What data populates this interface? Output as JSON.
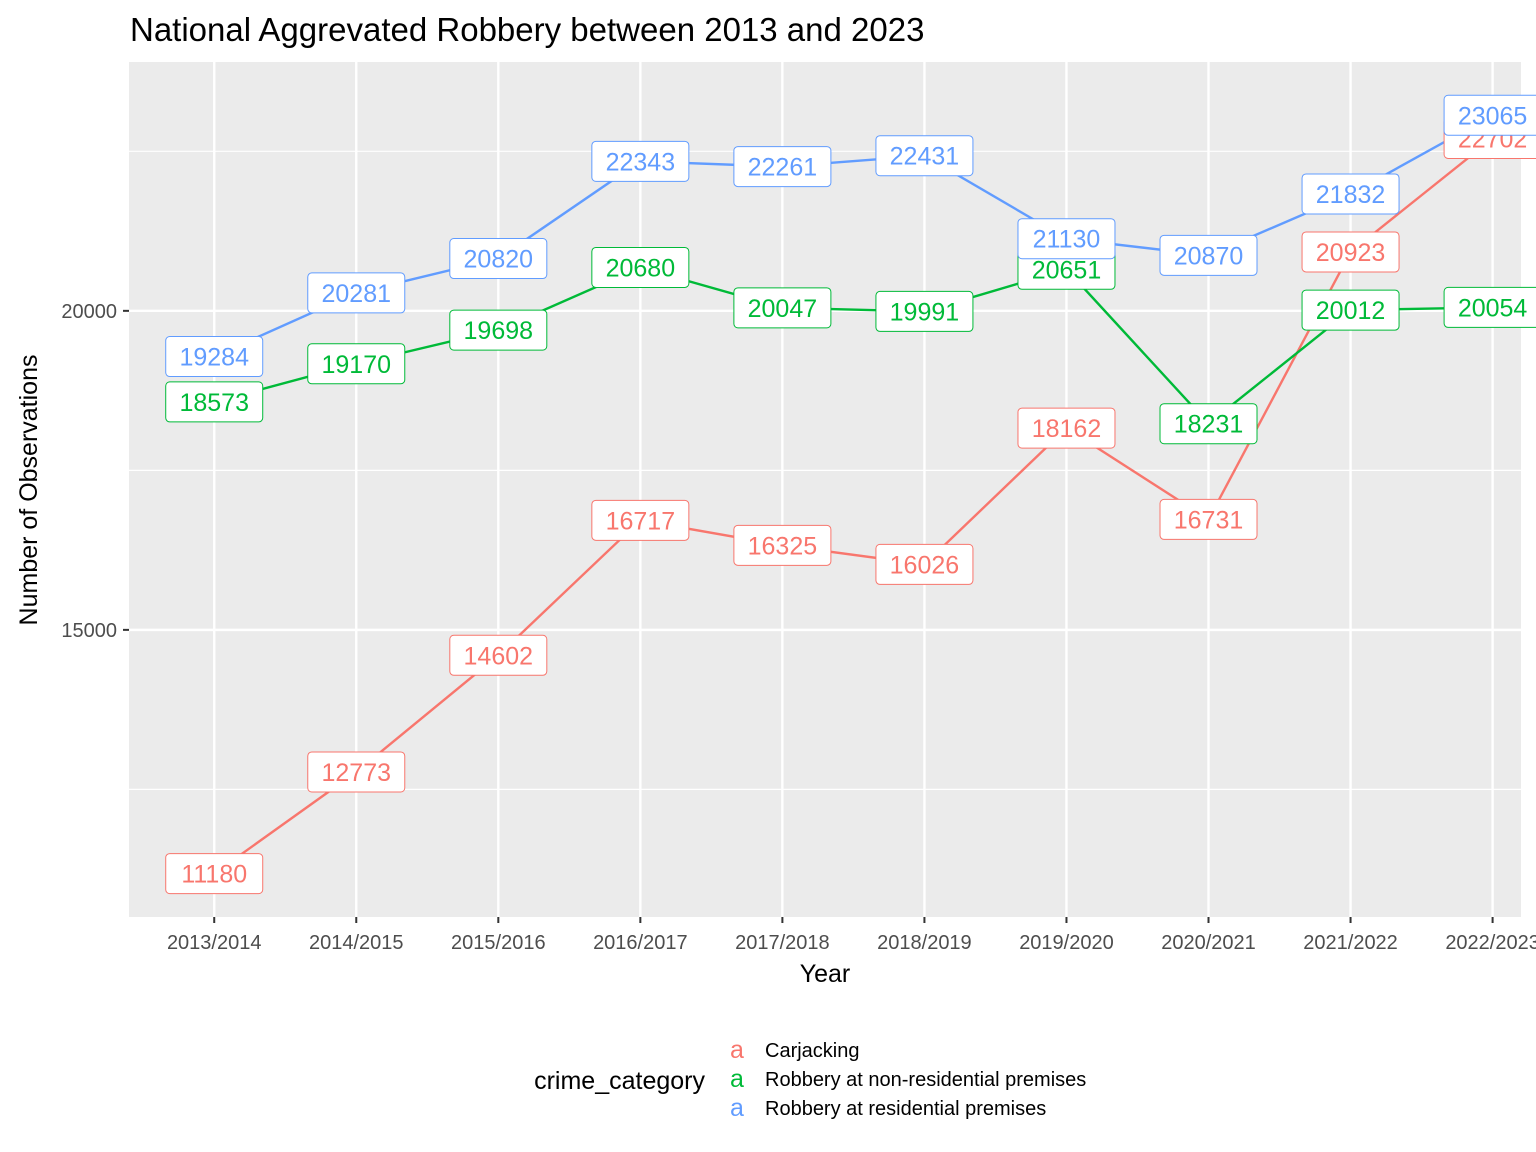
{
  "chart_data": {
    "type": "line",
    "title": "National Aggrevated Robbery between 2013 and 2023",
    "xlabel": "Year",
    "ylabel": "Number of Observations",
    "categories": [
      "2013/2014",
      "2014/2015",
      "2015/2016",
      "2016/2017",
      "2017/2018",
      "2018/2019",
      "2019/2020",
      "2020/2021",
      "2021/2022",
      "2022/2023"
    ],
    "ylim": [
      10500,
      23900
    ],
    "yticks": [
      15000,
      20000
    ],
    "minor_yticks": [
      12500,
      17500,
      22500
    ],
    "grid": true,
    "legend": {
      "title": "crime_category",
      "placement": "bottom",
      "key_glyph": "a"
    },
    "series": [
      {
        "name": "Carjacking",
        "color": "#F8766D",
        "values": [
          11180,
          12773,
          14602,
          16717,
          16325,
          16026,
          18162,
          16731,
          20923,
          22702
        ]
      },
      {
        "name": "Robbery at non-residential premises",
        "color": "#00BA38",
        "values": [
          18573,
          19170,
          19698,
          20680,
          20047,
          19991,
          20651,
          18231,
          20012,
          20054
        ]
      },
      {
        "name": "Robbery at residential premises",
        "color": "#619CFF",
        "values": [
          19284,
          20281,
          20820,
          22343,
          22261,
          22431,
          21130,
          20870,
          21832,
          23065
        ]
      }
    ]
  }
}
